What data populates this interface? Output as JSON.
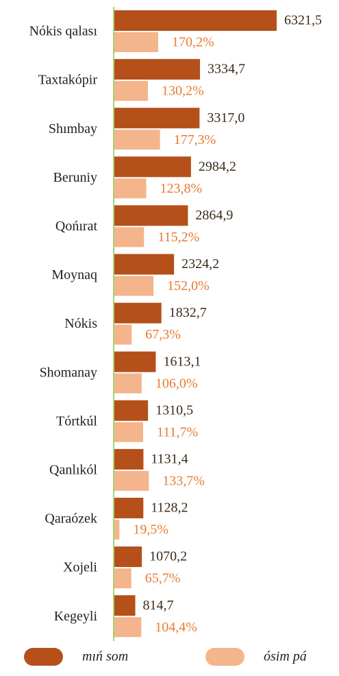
{
  "chart_data": {
    "type": "bar",
    "orientation": "horizontal",
    "categories": [
      "Nókis qalası",
      "Taxtakópir",
      "Shımbay",
      "Beruniy",
      "Qońırat",
      "Moynaq",
      "Nókis",
      "Shomanay",
      "Tórtkúl",
      "Qanlıkól",
      "Qaraózek",
      "Xojeli",
      "Kegeyli"
    ],
    "series": [
      {
        "name": "mıń som",
        "color": "#b5501a",
        "values": [
          6321.5,
          3334.7,
          3317.0,
          2984.2,
          2864.9,
          2324.2,
          1832.7,
          1613.1,
          1310.5,
          1131.4,
          1128.2,
          1070.2,
          814.7
        ],
        "value_labels": [
          "6321,5",
          "3334,7",
          "3317,0",
          "2984,2",
          "2864,9",
          "2324,2",
          "1832,7",
          "1613,1",
          "1310,5",
          "1131,4",
          "1128,2",
          "1070,2",
          "814,7"
        ]
      },
      {
        "name": "ósim pá",
        "color": "#f4b48c",
        "values": [
          170.2,
          130.2,
          177.3,
          123.8,
          115.2,
          152.0,
          67.3,
          106.0,
          111.7,
          133.7,
          19.5,
          65.7,
          104.4
        ],
        "value_labels": [
          "170,2%",
          "130,2%",
          "177,3%",
          "123,8%",
          "115,2%",
          "152,0%",
          "67,3%",
          "106,0%",
          "111,7%",
          "133,7%",
          "19,5%",
          "65,7%",
          "104,4%"
        ]
      }
    ]
  }
}
